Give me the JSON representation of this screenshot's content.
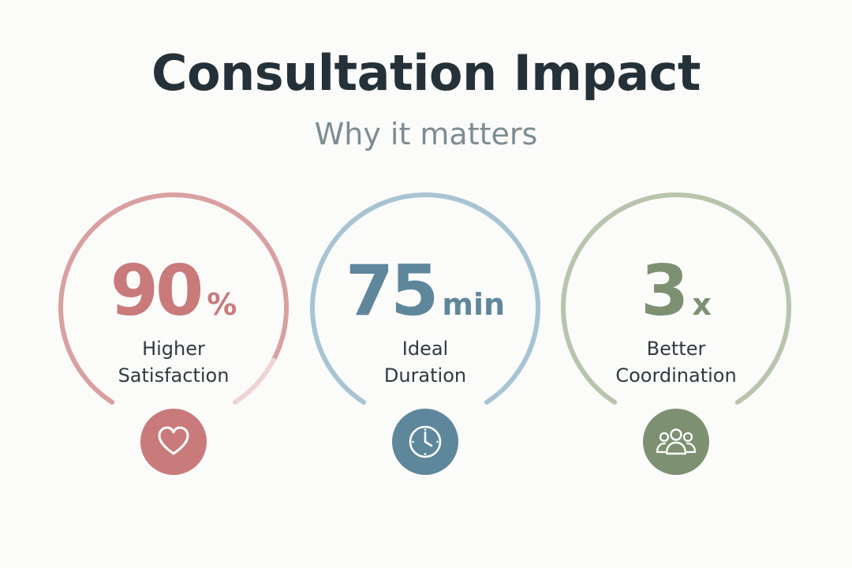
{
  "header": {
    "title": "Consultation Impact",
    "subtitle": "Why it matters"
  },
  "metrics": [
    {
      "value": "90",
      "unit": "%",
      "label_line1": "Higher",
      "label_line2": "Satisfaction",
      "icon": "heart-icon",
      "color": "#c97a7b",
      "ring_color": "#d9a0a0",
      "ring_faded_color": "#f0d3d3",
      "progress": 0.9
    },
    {
      "value": "75",
      "unit": "min",
      "label_line1": "Ideal",
      "label_line2": "Duration",
      "icon": "clock-icon",
      "color": "#5f879c",
      "ring_color": "#a8c4d2",
      "ring_faded_color": "#a8c4d2",
      "progress": 1.0
    },
    {
      "value": "3",
      "unit": "x",
      "label_line1": "Better",
      "label_line2": "Coordination",
      "icon": "people-group-icon",
      "color": "#7d9172",
      "ring_color": "#b8c4ac",
      "ring_faded_color": "#d7decd",
      "progress": 1.0
    }
  ]
}
